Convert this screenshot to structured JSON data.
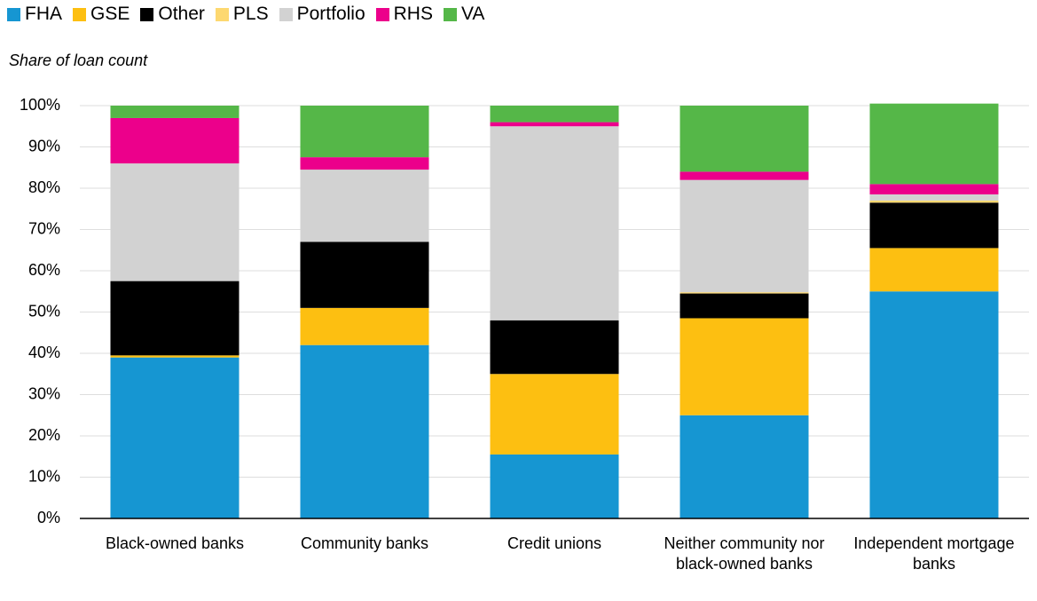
{
  "chart_data": {
    "type": "stacked_bar",
    "subtitle": "Share of loan count",
    "categories": [
      "Black-owned banks",
      "Community banks",
      "Credit unions",
      "Neither community nor black-owned banks",
      "Independent mortgage banks"
    ],
    "series": [
      {
        "name": "FHA",
        "color": "#1696d2",
        "values": [
          39,
          42,
          15.5,
          25,
          55
        ]
      },
      {
        "name": "GSE",
        "color": "#fdbf11",
        "values": [
          0.5,
          9,
          19.5,
          23.5,
          10.5
        ]
      },
      {
        "name": "Other",
        "color": "#000000",
        "values": [
          18,
          16,
          13,
          6,
          11
        ]
      },
      {
        "name": "PLS",
        "color": "#fdd870",
        "values": [
          0,
          0,
          0,
          0.3,
          0.5
        ]
      },
      {
        "name": "Portfolio",
        "color": "#d2d2d2",
        "values": [
          28.5,
          17.5,
          47,
          27.2,
          1.5
        ]
      },
      {
        "name": "RHS",
        "color": "#ec008b",
        "values": [
          11,
          3,
          1,
          2,
          2.5
        ]
      },
      {
        "name": "VA",
        "color": "#55b748",
        "values": [
          3,
          12.5,
          4,
          16,
          19.5
        ]
      }
    ],
    "ylim": [
      0,
      100
    ],
    "yticks": [
      {
        "value": 0,
        "label": "0%"
      },
      {
        "value": 10,
        "label": "10%"
      },
      {
        "value": 20,
        "label": "20%"
      },
      {
        "value": 30,
        "label": "30%"
      },
      {
        "value": 40,
        "label": "40%"
      },
      {
        "value": 50,
        "label": "50%"
      },
      {
        "value": 60,
        "label": "60%"
      },
      {
        "value": 70,
        "label": "70%"
      },
      {
        "value": 80,
        "label": "80%"
      },
      {
        "value": 90,
        "label": "90%"
      },
      {
        "value": 100,
        "label": "100%"
      }
    ],
    "grid": true
  }
}
